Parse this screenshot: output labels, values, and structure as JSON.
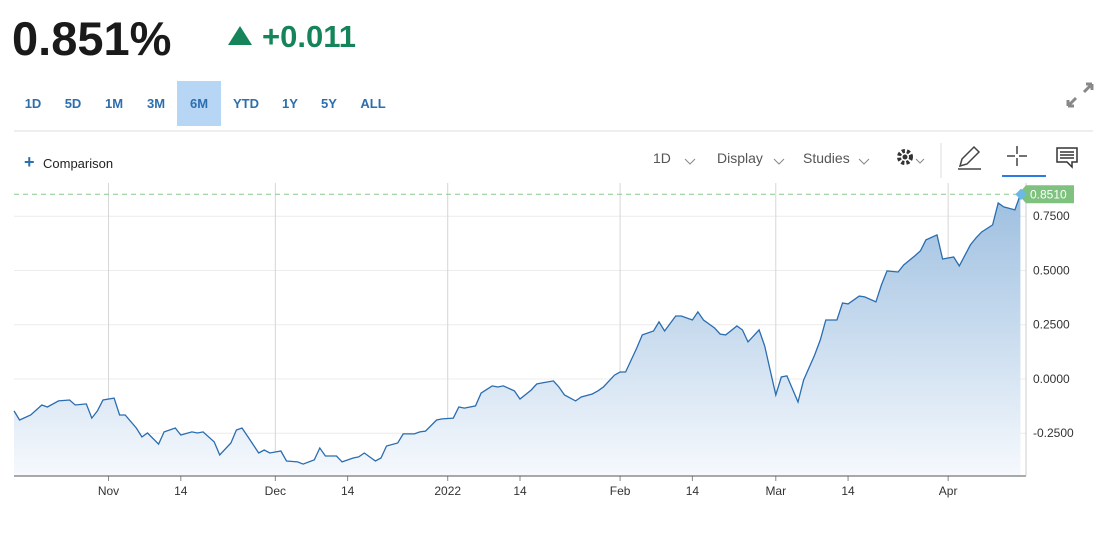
{
  "header": {
    "price": "0.851%",
    "change": "+0.011"
  },
  "ranges": {
    "items": [
      "1D",
      "5D",
      "1M",
      "3M",
      "6M",
      "YTD",
      "1Y",
      "5Y",
      "ALL"
    ],
    "selected": 4
  },
  "toolbar": {
    "comparison": "Comparison",
    "interval": "1D",
    "display": "Display",
    "studies": "Studies"
  },
  "chart_data": {
    "type": "area",
    "color": "#2a6db0",
    "x": [
      -17,
      -16,
      -14,
      -12,
      -11,
      -9,
      -7,
      -6,
      -4,
      -3,
      -2,
      -1,
      1,
      2,
      3,
      5,
      6,
      7,
      9,
      10,
      12,
      13,
      15,
      16,
      17,
      19,
      20,
      22,
      23,
      24,
      25,
      27,
      28,
      29,
      31,
      32,
      34,
      35,
      37,
      38,
      39,
      41,
      42,
      44,
      45,
      46,
      48,
      49,
      50,
      52,
      53,
      55,
      56,
      57,
      59,
      60,
      62,
      63,
      64,
      66,
      67,
      69,
      70,
      71,
      73,
      74,
      76,
      77,
      78,
      80,
      81,
      82,
      84,
      85,
      87,
      88,
      89,
      91,
      92,
      93,
      95,
      96,
      98,
      99,
      100,
      102,
      103,
      105,
      106,
      107,
      109,
      110,
      111,
      113,
      114,
      115,
      117,
      118,
      120,
      121,
      122,
      124,
      125,
      127,
      128,
      129,
      131,
      132,
      133,
      135,
      136,
      138,
      139,
      140,
      142,
      143,
      145,
      146,
      147,
      149,
      150,
      152,
      153,
      155,
      156,
      157,
      159,
      160,
      161,
      163,
      164
    ],
    "values": [
      -0.147,
      -0.189,
      -0.166,
      -0.12,
      -0.129,
      -0.101,
      -0.097,
      -0.12,
      -0.115,
      -0.18,
      -0.147,
      -0.097,
      -0.088,
      -0.166,
      -0.166,
      -0.226,
      -0.267,
      -0.249,
      -0.3,
      -0.244,
      -0.226,
      -0.258,
      -0.244,
      -0.249,
      -0.244,
      -0.29,
      -0.35,
      -0.295,
      -0.235,
      -0.226,
      -0.263,
      -0.341,
      -0.327,
      -0.341,
      -0.332,
      -0.378,
      -0.382,
      -0.392,
      -0.373,
      -0.318,
      -0.355,
      -0.355,
      -0.382,
      -0.364,
      -0.359,
      -0.341,
      -0.378,
      -0.364,
      -0.309,
      -0.295,
      -0.253,
      -0.253,
      -0.244,
      -0.24,
      -0.189,
      -0.184,
      -0.18,
      -0.129,
      -0.134,
      -0.124,
      -0.065,
      -0.032,
      -0.037,
      -0.032,
      -0.055,
      -0.092,
      -0.051,
      -0.023,
      -0.018,
      -0.009,
      -0.037,
      -0.074,
      -0.101,
      -0.083,
      -0.069,
      -0.055,
      -0.037,
      0.018,
      0.032,
      0.032,
      0.143,
      0.203,
      0.221,
      0.263,
      0.221,
      0.29,
      0.29,
      0.272,
      0.309,
      0.272,
      0.235,
      0.207,
      0.203,
      0.244,
      0.226,
      0.171,
      0.226,
      0.152,
      -0.074,
      0.009,
      0.014,
      -0.106,
      -0.005,
      0.111,
      0.18,
      0.272,
      0.272,
      0.35,
      0.346,
      0.382,
      0.378,
      0.355,
      0.433,
      0.498,
      0.493,
      0.525,
      0.567,
      0.59,
      0.641,
      0.664,
      0.553,
      0.562,
      0.521,
      0.618,
      0.65,
      0.677,
      0.71,
      0.811,
      0.793,
      0.779,
      0.851
    ],
    "current": {
      "value": 0.851,
      "label": "0.8510"
    },
    "xlim": [
      -17,
      165
    ],
    "ylim": [
      -0.447,
      0.903
    ],
    "xticks": [
      {
        "value": 0,
        "label": "Nov",
        "major": true
      },
      {
        "value": 13,
        "label": "14",
        "major": false
      },
      {
        "value": 30,
        "label": "Dec",
        "major": true
      },
      {
        "value": 43,
        "label": "14",
        "major": false
      },
      {
        "value": 61,
        "label": "2022",
        "major": true
      },
      {
        "value": 74,
        "label": "14",
        "major": false
      },
      {
        "value": 92,
        "label": "Feb",
        "major": true
      },
      {
        "value": 105,
        "label": "14",
        "major": false
      },
      {
        "value": 120,
        "label": "Mar",
        "major": true
      },
      {
        "value": 133,
        "label": "14",
        "major": false
      },
      {
        "value": 151,
        "label": "Apr",
        "major": true
      }
    ],
    "yticks": [
      {
        "value": -0.25,
        "label": "-0.2500"
      },
      {
        "value": 0,
        "label": "0.0000"
      },
      {
        "value": 0.25,
        "label": "0.2500"
      },
      {
        "value": 0.5,
        "label": "0.5000"
      },
      {
        "value": 0.75,
        "label": "0.7500"
      }
    ],
    "grid": true
  }
}
